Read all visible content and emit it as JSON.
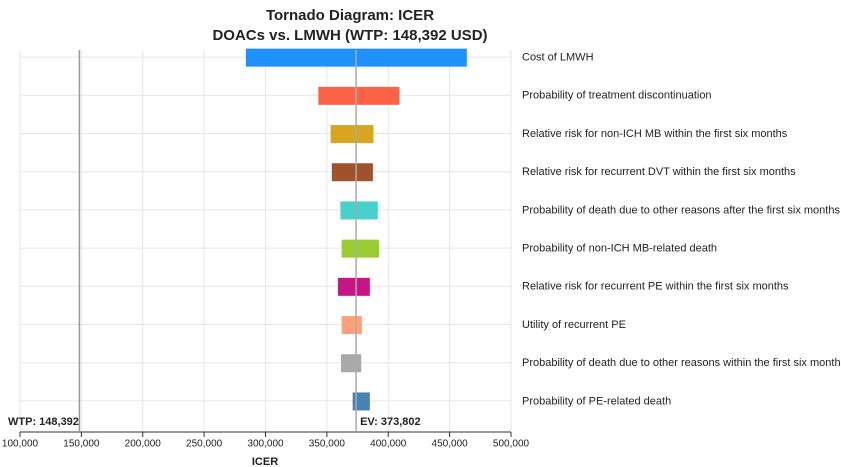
{
  "chart_data": {
    "type": "tornado",
    "title": "Tornado Diagram: ICER",
    "subtitle": "DOACs vs. LMWH (WTP: 148,392 USD)",
    "x_label": "ICER",
    "categories": [
      "Cost of LMWH",
      "Probability of treatment discontinuation",
      "Relative risk for non-ICH MB within the first six months",
      "Relative risk for recurrent DVT within the first six months",
      "Probability of death due to other reasons after the first six months",
      "Probability of non-ICH MB-related death",
      "Relative risk for recurrent PE within the first six months",
      "Utility of recurrent PE",
      "Probability of death due to other reasons within the first six months",
      "Probability of PE-related death"
    ],
    "low": [
      284000,
      343000,
      353000,
      354000,
      361000,
      362000,
      359000,
      362000,
      361500,
      371000
    ],
    "high": [
      464000,
      409000,
      388000,
      387500,
      391500,
      392500,
      385000,
      378500,
      378000,
      385000
    ],
    "colors": [
      "#1e90ff",
      "#ff6347",
      "#daa520",
      "#a0522d",
      "#48d1cc",
      "#9acd32",
      "#c71585",
      "#ffa07a",
      "#a9a9a9",
      "#4682b4"
    ],
    "ev": {
      "value": 373802,
      "label": "EV: 373,802"
    },
    "wtp": {
      "value": 148392,
      "label": "WTP: 148,392"
    },
    "xlim": [
      100000,
      500000
    ],
    "xticks": [
      {
        "value": 100000,
        "label": "100,000"
      },
      {
        "value": 150000,
        "label": "150,000"
      },
      {
        "value": 200000,
        "label": "200,000"
      },
      {
        "value": 250000,
        "label": "250,000"
      },
      {
        "value": 300000,
        "label": "300,000"
      },
      {
        "value": 350000,
        "label": "350,000"
      },
      {
        "value": 400000,
        "label": "400,000"
      },
      {
        "value": 450000,
        "label": "450,000"
      },
      {
        "value": 500000,
        "label": "500,000"
      }
    ],
    "grid": true
  }
}
